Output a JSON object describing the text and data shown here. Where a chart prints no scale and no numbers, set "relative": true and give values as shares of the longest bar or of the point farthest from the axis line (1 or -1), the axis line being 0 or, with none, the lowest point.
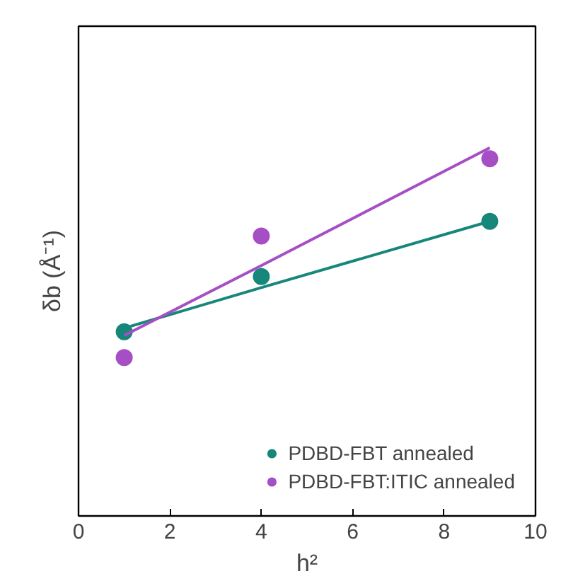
{
  "chart_data": {
    "type": "scatter",
    "relative": true,
    "xlabel": "h²",
    "ylabel": "δb (Å⁻¹)",
    "x": [
      1,
      4,
      9
    ],
    "xlim": [
      0,
      10
    ],
    "xticks": [
      0,
      2,
      4,
      6,
      8,
      10
    ],
    "grid": false,
    "legend": "bottom right",
    "series": [
      {
        "name": "PDBD-FBT annealed",
        "color": "#16877a",
        "marker": "circle",
        "values": [
          0.5,
          0.65,
          0.8
        ]
      },
      {
        "name": "PDBD-FBT:ITIC annealed",
        "color": "#a64fc4",
        "marker": "circle",
        "values": [
          0.43,
          0.76,
          0.97
        ]
      },
      {
        "type": "line",
        "color": "#16877a",
        "values": [
          0.51,
          0.62,
          0.8
        ],
        "line_style": "solid"
      },
      {
        "type": "line",
        "color": "#a64fc4",
        "values": [
          0.49,
          0.68,
          1.0
        ],
        "line_style": "solid"
      }
    ]
  }
}
